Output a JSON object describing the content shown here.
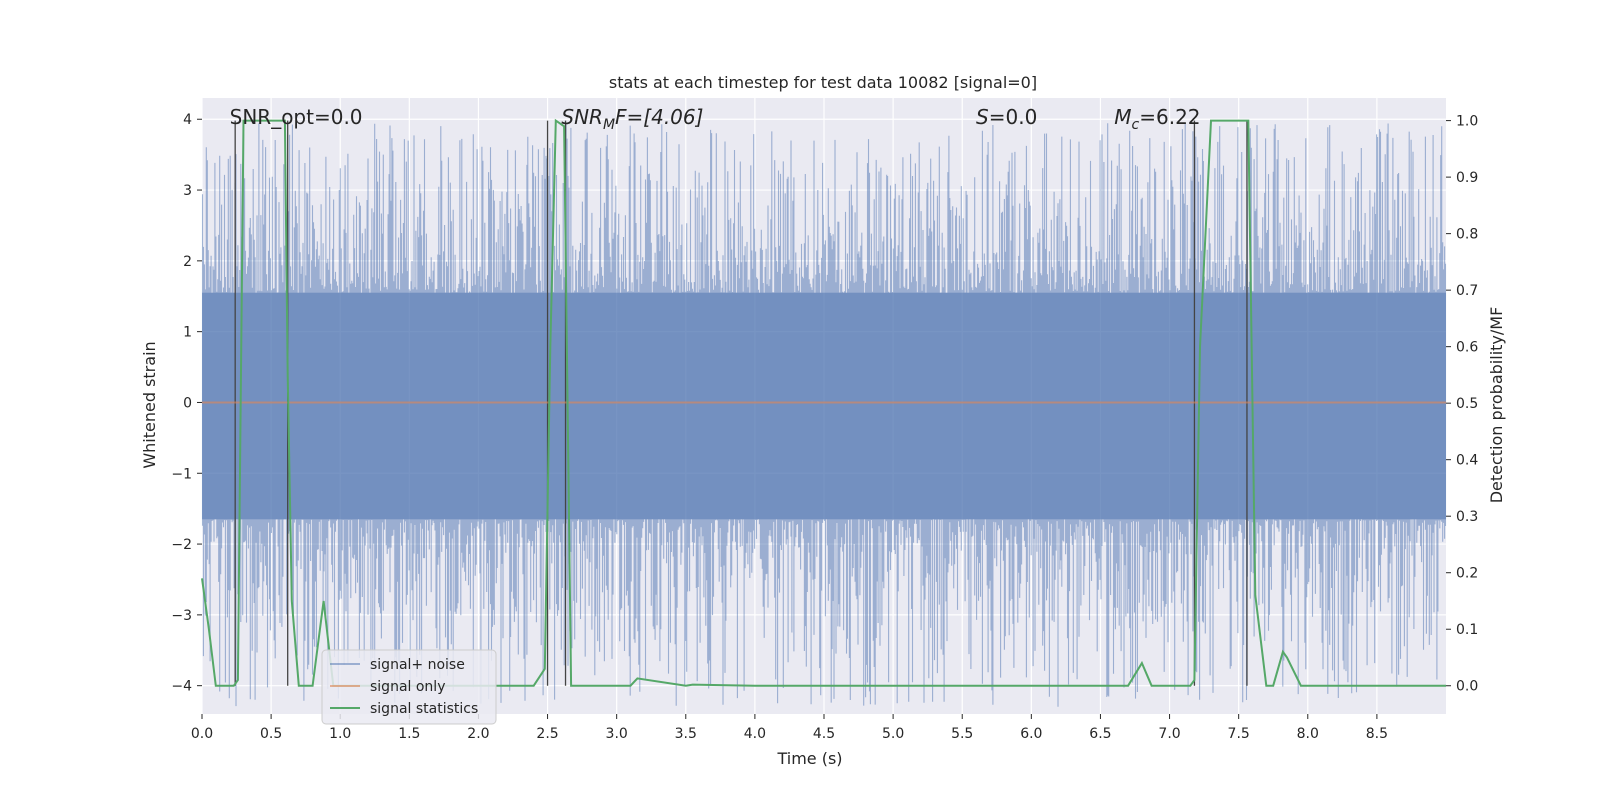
{
  "chart_data": {
    "type": "line",
    "title": "stats at each timestep for test data 10082 [signal=0]",
    "xlabel": "Time (s)",
    "ylabel": "Whitened strain",
    "y2label": "Detection probability/MF",
    "xlim": [
      0,
      9.0
    ],
    "ylim": [
      -4.4,
      4.3
    ],
    "y2lim": [
      -0.05,
      1.04
    ],
    "grid": true,
    "legend_position": "lower-left",
    "x_ticks": [
      0.0,
      0.5,
      1.0,
      1.5,
      2.0,
      2.5,
      3.0,
      3.5,
      4.0,
      4.5,
      5.0,
      5.5,
      6.0,
      6.5,
      7.0,
      7.5,
      8.0,
      8.5
    ],
    "x_tick_labels": [
      "0.0",
      "0.5",
      "1.0",
      "1.5",
      "2.0",
      "2.5",
      "3.0",
      "3.5",
      "4.0",
      "4.5",
      "5.0",
      "5.5",
      "6.0",
      "6.5",
      "7.0",
      "7.5",
      "8.0",
      "8.5"
    ],
    "y_ticks": [
      -4,
      -3,
      -2,
      -1,
      0,
      1,
      2,
      3,
      4
    ],
    "y_tick_labels": [
      "−4",
      "−3",
      "−2",
      "−1",
      "0",
      "1",
      "2",
      "3",
      "4"
    ],
    "y2_ticks": [
      0.0,
      0.1,
      0.2,
      0.3,
      0.4,
      0.5,
      0.6,
      0.7,
      0.8,
      0.9,
      1.0
    ],
    "y2_tick_labels": [
      "0.0",
      "0.1",
      "0.2",
      "0.3",
      "0.4",
      "0.5",
      "0.6",
      "0.7",
      "0.8",
      "0.9",
      "1.0"
    ],
    "annotations": {
      "snr_opt": "SNR_opt=0.0",
      "snr_mf_main": "SNR",
      "snr_mf_sub": "M",
      "snr_mf_rest": "F=[4.06]",
      "s_main": "S",
      "s_rest": "=0.0",
      "mc_main": "M",
      "mc_sub": "c",
      "mc_rest": "=6.22"
    },
    "annotation_x": [
      0.2,
      2.6,
      5.6,
      6.6
    ],
    "noise_band": {
      "upper": 1.55,
      "lower": -1.65,
      "peak_max": 3.95,
      "peak_min": -4.3
    },
    "series": [
      {
        "name": "signal+ noise",
        "color": "#4c72b0",
        "description_shown": "noise strain trace"
      },
      {
        "name": "signal only",
        "color": "#dd8452",
        "values_constant": 0.0
      },
      {
        "name": "signal statistics",
        "color": "#55a868",
        "axis": "right",
        "x": [
          0.0,
          0.05,
          0.1,
          0.2,
          0.23,
          0.26,
          0.3,
          0.5,
          0.6,
          0.62,
          0.65,
          0.7,
          0.8,
          0.88,
          0.95,
          1.0,
          1.5,
          2.0,
          2.4,
          2.48,
          2.52,
          2.56,
          2.62,
          2.67,
          2.75,
          3.0,
          3.1,
          3.15,
          3.5,
          3.55,
          4.0,
          5.0,
          6.0,
          6.7,
          6.8,
          6.87,
          7.0,
          7.15,
          7.18,
          7.22,
          7.3,
          7.5,
          7.57,
          7.62,
          7.7,
          7.75,
          7.82,
          7.85,
          7.95,
          8.0,
          8.5,
          9.0
        ],
        "y": [
          0.19,
          0.1,
          0.0,
          0.0,
          0.0,
          0.01,
          1.0,
          1.0,
          1.0,
          0.55,
          0.15,
          0.0,
          0.0,
          0.15,
          0.0,
          0.0,
          0.0,
          0.0,
          0.0,
          0.03,
          0.6,
          1.0,
          0.99,
          0.0,
          0.0,
          0.0,
          0.0,
          0.013,
          0.0,
          0.002,
          0.0,
          0.0,
          0.0,
          0.0,
          0.04,
          0.0,
          0.0,
          0.0,
          0.01,
          0.6,
          1.0,
          1.0,
          1.0,
          0.16,
          0.0,
          0.0,
          0.06,
          0.05,
          0.0,
          0.0,
          0.0,
          0.0
        ]
      }
    ],
    "vertical_lines": [
      0.24,
      0.62,
      2.5,
      2.63,
      7.18,
      7.56
    ]
  }
}
